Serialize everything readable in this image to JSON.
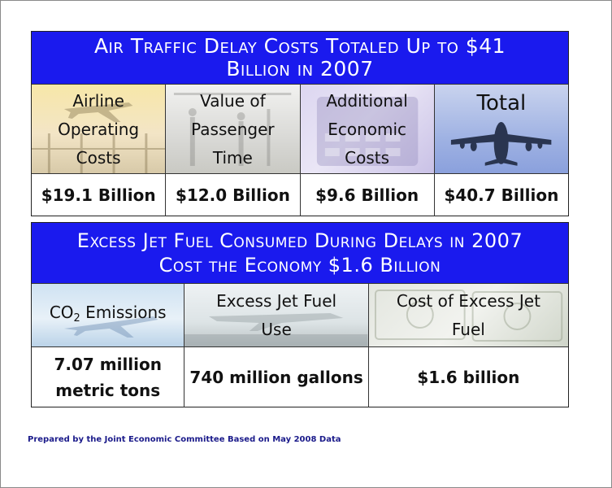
{
  "section1": {
    "title_line1": "Air Traffic Delay Costs Totaled Up to $41",
    "title_line2": "Billion in 2007",
    "headers": [
      {
        "lines": [
          "Airline",
          "Operating",
          "Costs"
        ],
        "icon": "airport-plane-icon"
      },
      {
        "lines": [
          "Value of",
          "Passenger",
          "Time"
        ],
        "icon": "terminal-passengers-icon"
      },
      {
        "lines": [
          "Additional",
          "Economic",
          "Costs"
        ],
        "icon": "calculator-icon"
      },
      {
        "lines": [
          "Total"
        ],
        "icon": "jet-airliner-icon"
      }
    ],
    "values": [
      "$19.1 Billion",
      "$12.0 Billion",
      "$9.6 Billion",
      "$40.7 Billion"
    ]
  },
  "section2": {
    "title_line1": "Excess Jet Fuel Consumed During Delays in 2007",
    "title_line2": "Cost the Economy $1.6 Billion",
    "headers": [
      {
        "main": "CO",
        "sub": "2",
        "rest": " Emissions",
        "icon": "airplane-sky-icon"
      },
      {
        "lines": [
          "Excess Jet Fuel",
          "Use"
        ],
        "icon": "private-jet-icon"
      },
      {
        "lines": [
          "Cost of Excess Jet",
          "Fuel"
        ],
        "icon": "dollar-bills-icon"
      }
    ],
    "values": [
      {
        "lines": [
          "7.07 million",
          "metric tons"
        ]
      },
      {
        "lines": [
          "740 million gallons"
        ]
      },
      {
        "lines": [
          "$1.6 billion"
        ]
      }
    ]
  },
  "footer": "Prepared by the Joint Economic Committee Based on May 2008 Data",
  "colors": {
    "banner": "#1a1aee",
    "banner_text": "#ffffff",
    "footer_text": "#1a1a8a"
  }
}
